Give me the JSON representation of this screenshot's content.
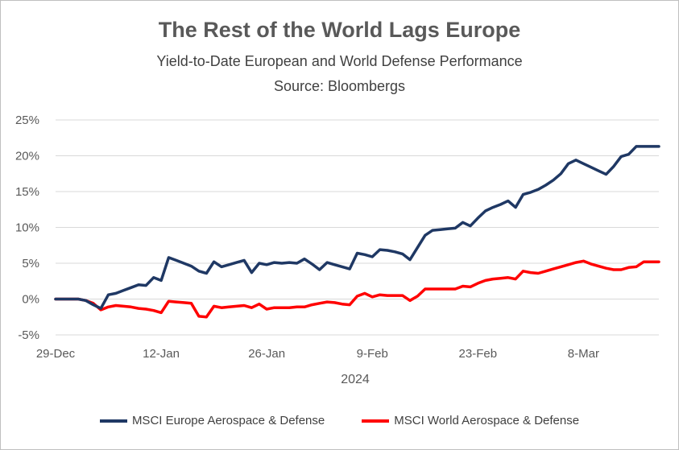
{
  "chart_data": {
    "type": "line",
    "title": "The Rest of the World Lags Europe",
    "subtitle": "Yield-to-Date European and World Defense Performance",
    "source": "Source: Bloombergs",
    "xlabel": "2024",
    "ylabel": "",
    "x_tick_labels": [
      "29-Dec",
      "12-Jan",
      "26-Jan",
      "9-Feb",
      "23-Feb",
      "8-Mar"
    ],
    "x_range_days": [
      0,
      80
    ],
    "y_tick_labels": [
      "25%",
      "20%",
      "15%",
      "10%",
      "5%",
      "0%",
      "-5%"
    ],
    "ylim": [
      -5,
      25
    ],
    "y_ticks": [
      25,
      20,
      15,
      10,
      5,
      0,
      -5
    ],
    "grid": "horizontal",
    "legend_position": "bottom",
    "colors": {
      "europe": "#1f3864",
      "world": "#ff0000",
      "grid": "#d9d9d9",
      "text": "#595959"
    },
    "series": [
      {
        "name": "MSCI Europe Aerospace & Defense",
        "color": "#1f3864",
        "x": [
          0,
          3,
          4,
          5,
          6,
          7,
          8,
          9,
          10,
          11,
          12,
          13,
          14,
          15,
          16,
          17,
          18,
          19,
          20,
          21,
          22,
          23,
          24,
          25,
          26,
          27,
          28,
          29,
          30,
          31,
          32,
          33,
          34,
          35,
          36,
          37,
          38,
          39,
          40,
          41,
          42,
          43,
          44,
          45,
          46,
          47,
          48,
          49,
          50,
          51,
          52,
          53,
          54,
          55,
          56,
          57,
          58,
          59,
          60,
          61,
          62,
          63,
          64,
          65,
          66,
          67,
          68,
          69,
          70,
          71,
          72,
          73,
          74,
          75,
          76,
          77,
          78,
          80
        ],
        "y": [
          0,
          0,
          -0.2,
          -0.8,
          -1.3,
          0.6,
          0.8,
          1.2,
          1.6,
          2.0,
          1.9,
          3.0,
          2.6,
          5.8,
          5.4,
          5.0,
          4.6,
          3.9,
          3.6,
          5.2,
          4.5,
          4.8,
          5.1,
          5.4,
          3.7,
          5.0,
          4.8,
          5.1,
          5.0,
          5.1,
          5.0,
          5.6,
          4.9,
          4.1,
          5.1,
          4.8,
          4.5,
          4.2,
          6.4,
          6.2,
          5.9,
          6.9,
          6.8,
          6.6,
          6.3,
          5.5,
          7.2,
          8.9,
          9.6,
          9.7,
          9.8,
          9.9,
          10.7,
          10.2,
          11.3,
          12.3,
          12.8,
          13.2,
          13.7,
          12.8,
          14.6,
          14.9,
          15.3,
          15.9,
          16.6,
          17.5,
          18.9,
          19.4,
          18.9,
          18.4,
          17.9,
          17.4,
          18.5,
          19.9,
          20.2,
          21.3,
          21.3,
          21.3
        ]
      },
      {
        "name": "MSCI World Aerospace & Defense",
        "color": "#ff0000",
        "x": [
          0,
          3,
          4,
          5,
          6,
          7,
          8,
          9,
          10,
          11,
          12,
          13,
          14,
          15,
          16,
          17,
          18,
          19,
          20,
          21,
          22,
          23,
          24,
          25,
          26,
          27,
          28,
          29,
          30,
          31,
          32,
          33,
          34,
          35,
          36,
          37,
          38,
          39,
          40,
          41,
          42,
          43,
          44,
          45,
          46,
          47,
          48,
          49,
          50,
          51,
          52,
          53,
          54,
          55,
          56,
          57,
          58,
          59,
          60,
          61,
          62,
          63,
          64,
          65,
          66,
          67,
          68,
          69,
          70,
          71,
          72,
          73,
          74,
          75,
          76,
          77,
          78,
          80
        ],
        "y": [
          0,
          0,
          -0.2,
          -0.6,
          -1.5,
          -1.1,
          -0.9,
          -1.0,
          -1.1,
          -1.3,
          -1.4,
          -1.6,
          -1.9,
          -0.3,
          -0.4,
          -0.5,
          -0.6,
          -2.4,
          -2.5,
          -1.0,
          -1.2,
          -1.1,
          -1.0,
          -0.9,
          -1.2,
          -0.7,
          -1.4,
          -1.2,
          -1.2,
          -1.2,
          -1.1,
          -1.1,
          -0.8,
          -0.6,
          -0.4,
          -0.5,
          -0.7,
          -0.8,
          0.4,
          0.8,
          0.3,
          0.6,
          0.5,
          0.5,
          0.5,
          -0.2,
          0.4,
          1.4,
          1.4,
          1.4,
          1.4,
          1.4,
          1.8,
          1.7,
          2.2,
          2.6,
          2.8,
          2.9,
          3.0,
          2.8,
          3.9,
          3.7,
          3.6,
          3.9,
          4.2,
          4.5,
          4.8,
          5.1,
          5.3,
          4.9,
          4.6,
          4.3,
          4.1,
          4.1,
          4.4,
          4.5,
          5.2,
          5.2
        ]
      }
    ]
  }
}
